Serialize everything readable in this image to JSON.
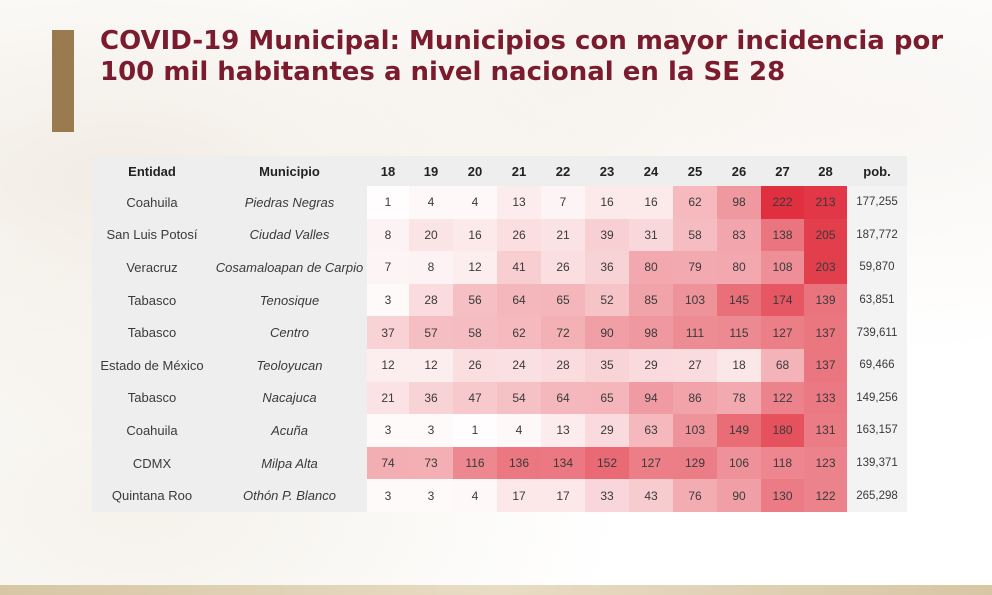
{
  "title": "COVID-19 Municipal: Municipios con mayor incidencia por 100 mil habitantes a nivel nacional en la SE 28",
  "colors": {
    "title": "#7b1c2e",
    "accent_bar": "#9a7b4f",
    "heat_high": "#e0303f",
    "heat_low": "#ffffff"
  },
  "headers": {
    "entidad": "Entidad",
    "municipio": "Municipio",
    "weeks": [
      "18",
      "19",
      "20",
      "21",
      "22",
      "23",
      "24",
      "25",
      "26",
      "27",
      "28"
    ],
    "pob": "pob."
  },
  "chart_data": {
    "type": "heatmap",
    "title": "COVID-19 Municipal: Municipios con mayor incidencia por 100 mil habitantes a nivel nacional en la SE 28",
    "x": [
      "18",
      "19",
      "20",
      "21",
      "22",
      "23",
      "24",
      "25",
      "26",
      "27",
      "28"
    ],
    "rows": [
      {
        "entidad": "Coahuila",
        "municipio": "Piedras Negras",
        "values": [
          1,
          4,
          4,
          13,
          7,
          16,
          16,
          62,
          98,
          222,
          213
        ],
        "pob": "177,255"
      },
      {
        "entidad": "San Luis Potosí",
        "municipio": "Ciudad Valles",
        "values": [
          8,
          20,
          16,
          26,
          21,
          39,
          31,
          58,
          83,
          138,
          205
        ],
        "pob": "187,772"
      },
      {
        "entidad": "Veracruz",
        "municipio": "Cosamaloapan de Carpio",
        "values": [
          7,
          8,
          12,
          41,
          26,
          36,
          80,
          79,
          80,
          108,
          203
        ],
        "pob": "59,870"
      },
      {
        "entidad": "Tabasco",
        "municipio": "Tenosique",
        "values": [
          3,
          28,
          56,
          64,
          65,
          52,
          85,
          103,
          145,
          174,
          139
        ],
        "pob": "63,851"
      },
      {
        "entidad": "Tabasco",
        "municipio": "Centro",
        "values": [
          37,
          57,
          58,
          62,
          72,
          90,
          98,
          111,
          115,
          127,
          137
        ],
        "pob": "739,611"
      },
      {
        "entidad": "Estado de México",
        "municipio": "Teoloyucan",
        "values": [
          12,
          12,
          26,
          24,
          28,
          35,
          29,
          27,
          18,
          68,
          137
        ],
        "pob": "69,466"
      },
      {
        "entidad": "Tabasco",
        "municipio": "Nacajuca",
        "values": [
          21,
          36,
          47,
          54,
          64,
          65,
          94,
          86,
          78,
          122,
          133
        ],
        "pob": "149,256"
      },
      {
        "entidad": "Coahuila",
        "municipio": "Acuña",
        "values": [
          3,
          3,
          1,
          4,
          13,
          29,
          63,
          103,
          149,
          180,
          131
        ],
        "pob": "163,157"
      },
      {
        "entidad": "CDMX",
        "municipio": "Milpa Alta",
        "values": [
          74,
          73,
          116,
          136,
          134,
          152,
          127,
          129,
          106,
          118,
          123
        ],
        "pob": "139,371"
      },
      {
        "entidad": "Quintana Roo",
        "municipio": "Othón P. Blanco",
        "values": [
          3,
          3,
          4,
          17,
          17,
          33,
          43,
          76,
          90,
          130,
          122
        ],
        "pob": "265,298"
      }
    ]
  }
}
